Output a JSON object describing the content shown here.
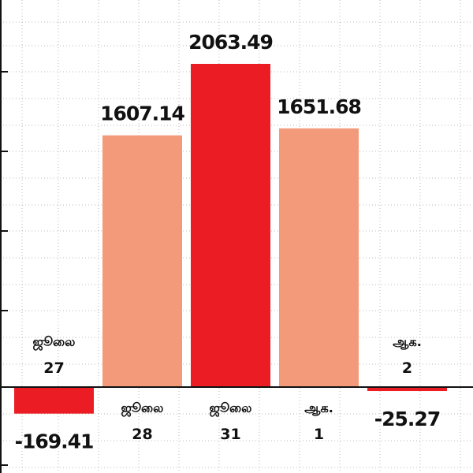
{
  "chart_data": {
    "type": "bar",
    "categories": [
      {
        "month": "ஜூலை",
        "day": "27"
      },
      {
        "month": "ஜூலை",
        "day": "28"
      },
      {
        "month": "ஜூலை",
        "day": "31"
      },
      {
        "month": "ஆக.",
        "day": "1"
      },
      {
        "month": "ஆக.",
        "day": "2"
      }
    ],
    "values": [
      -169.41,
      1607.14,
      2063.49,
      1651.68,
      -25.27
    ],
    "value_labels": [
      "-169.41",
      "1607.14",
      "2063.49",
      "1651.68",
      "-25.27"
    ],
    "colors": [
      "#ec1c24",
      "#f39a7b",
      "#ec1c24",
      "#f39a7b",
      "#ec1c24"
    ],
    "ylim": [
      -300,
      2300
    ],
    "grid": true,
    "title": "",
    "xlabel": "",
    "ylabel": ""
  }
}
